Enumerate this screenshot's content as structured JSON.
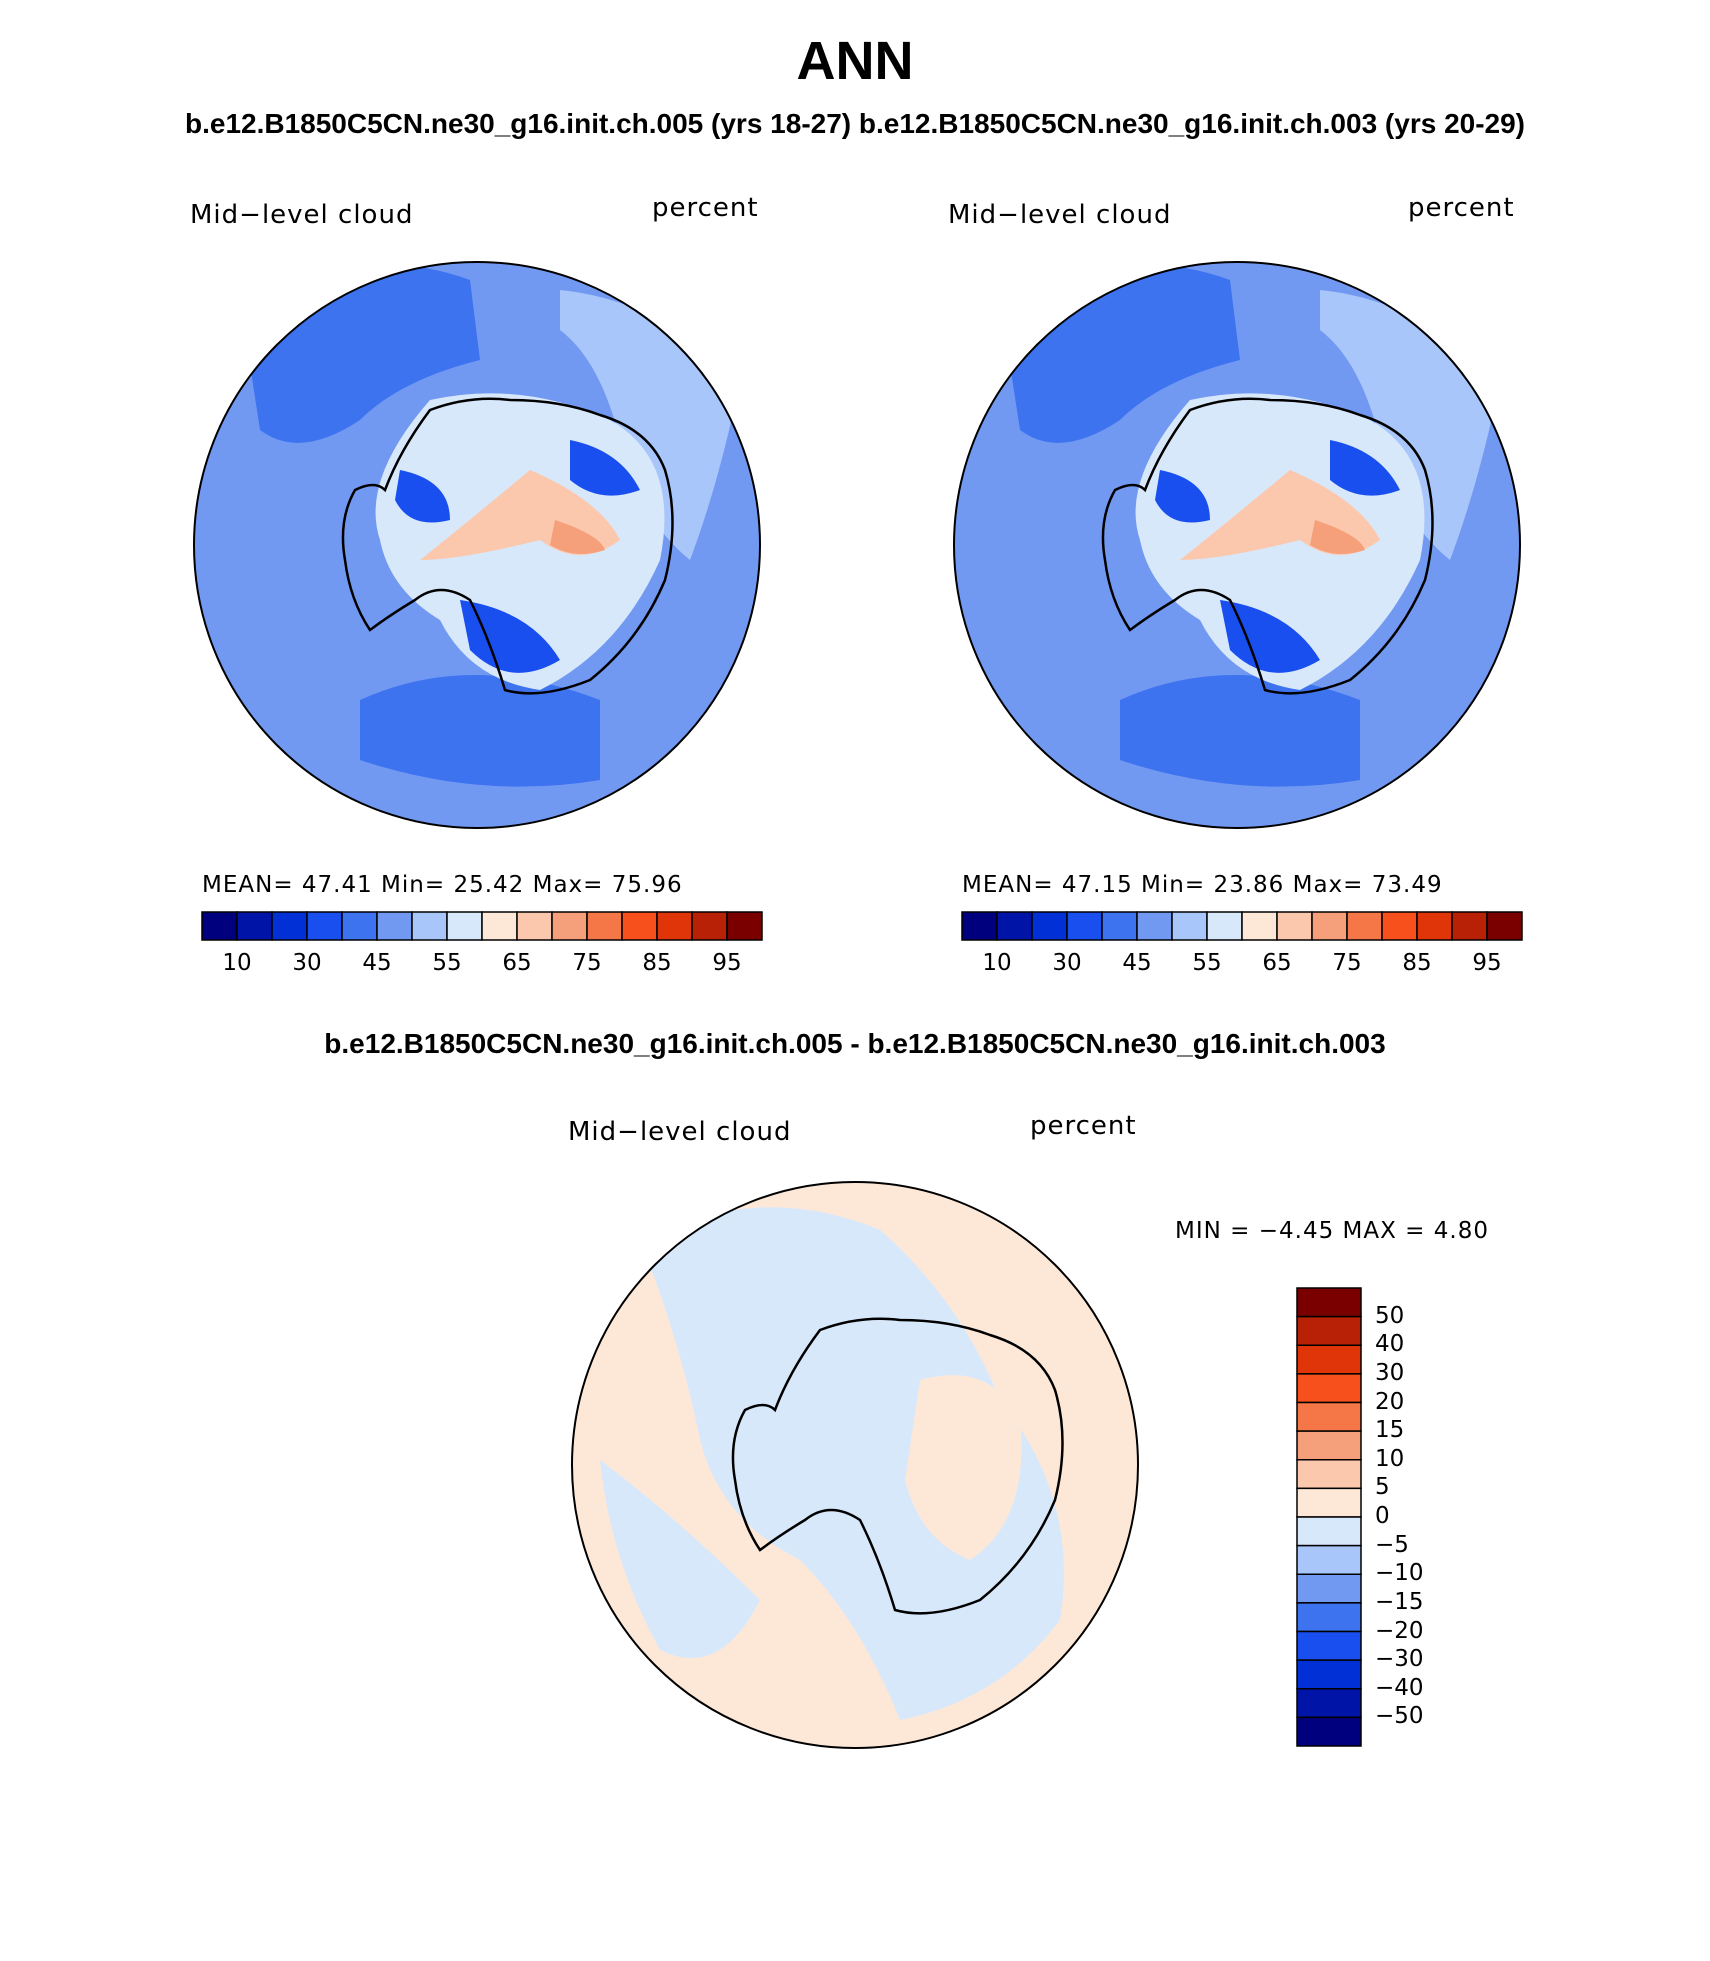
{
  "figure": {
    "season": "ANN",
    "case_titles": "b.e12.B1850C5CN.ne30_g16.init.ch.005 (yrs 18-27)  b.e12.B1850C5CN.ne30_g16.init.ch.003 (yrs 20-29)",
    "diff_title": "b.e12.B1850C5CN.ne30_g16.init.ch.005 - b.e12.B1850C5CN.ne30_g16.init.ch.003"
  },
  "panels": [
    {
      "variable": "Mid−level cloud",
      "units": "percent",
      "stats": "MEAN=   47.41   Min=   25.42   Max=   75.96",
      "colorbar_ticks": [
        "10",
        "30",
        "45",
        "55",
        "65",
        "75",
        "85",
        "95"
      ]
    },
    {
      "variable": "Mid−level cloud",
      "units": "percent",
      "stats": "MEAN=   47.15   Min=   23.86   Max=   73.49",
      "colorbar_ticks": [
        "10",
        "30",
        "45",
        "55",
        "65",
        "75",
        "85",
        "95"
      ]
    }
  ],
  "diff_panel": {
    "variable": "Mid−level cloud",
    "units": "percent",
    "stats": "MIN =   −4.45  MAX =    4.80",
    "colorbar_ticks": [
      "50",
      "40",
      "30",
      "20",
      "15",
      "10",
      "5",
      "0",
      "−5",
      "−10",
      "−15",
      "−20",
      "−30",
      "−40",
      "−50"
    ]
  },
  "colors": {
    "field_palette": [
      "#00007f",
      "#0014a8",
      "#0030d6",
      "#1a4fef",
      "#3e73f0",
      "#7299f2",
      "#a9c6fb",
      "#d8e8fb",
      "#fde8d8",
      "#fcc8ad",
      "#f6a07b",
      "#f57747",
      "#f8501c",
      "#e03508",
      "#b82105",
      "#7a0000"
    ],
    "diff_palette": [
      "#7a0000",
      "#b82105",
      "#e03508",
      "#f8501c",
      "#f57747",
      "#f6a07b",
      "#fcc8ad",
      "#fde8d8",
      "#d8e8fb",
      "#a9c6fb",
      "#7299f2",
      "#3e73f0",
      "#1a4fef",
      "#0030d6",
      "#0014a8",
      "#00007f"
    ]
  }
}
